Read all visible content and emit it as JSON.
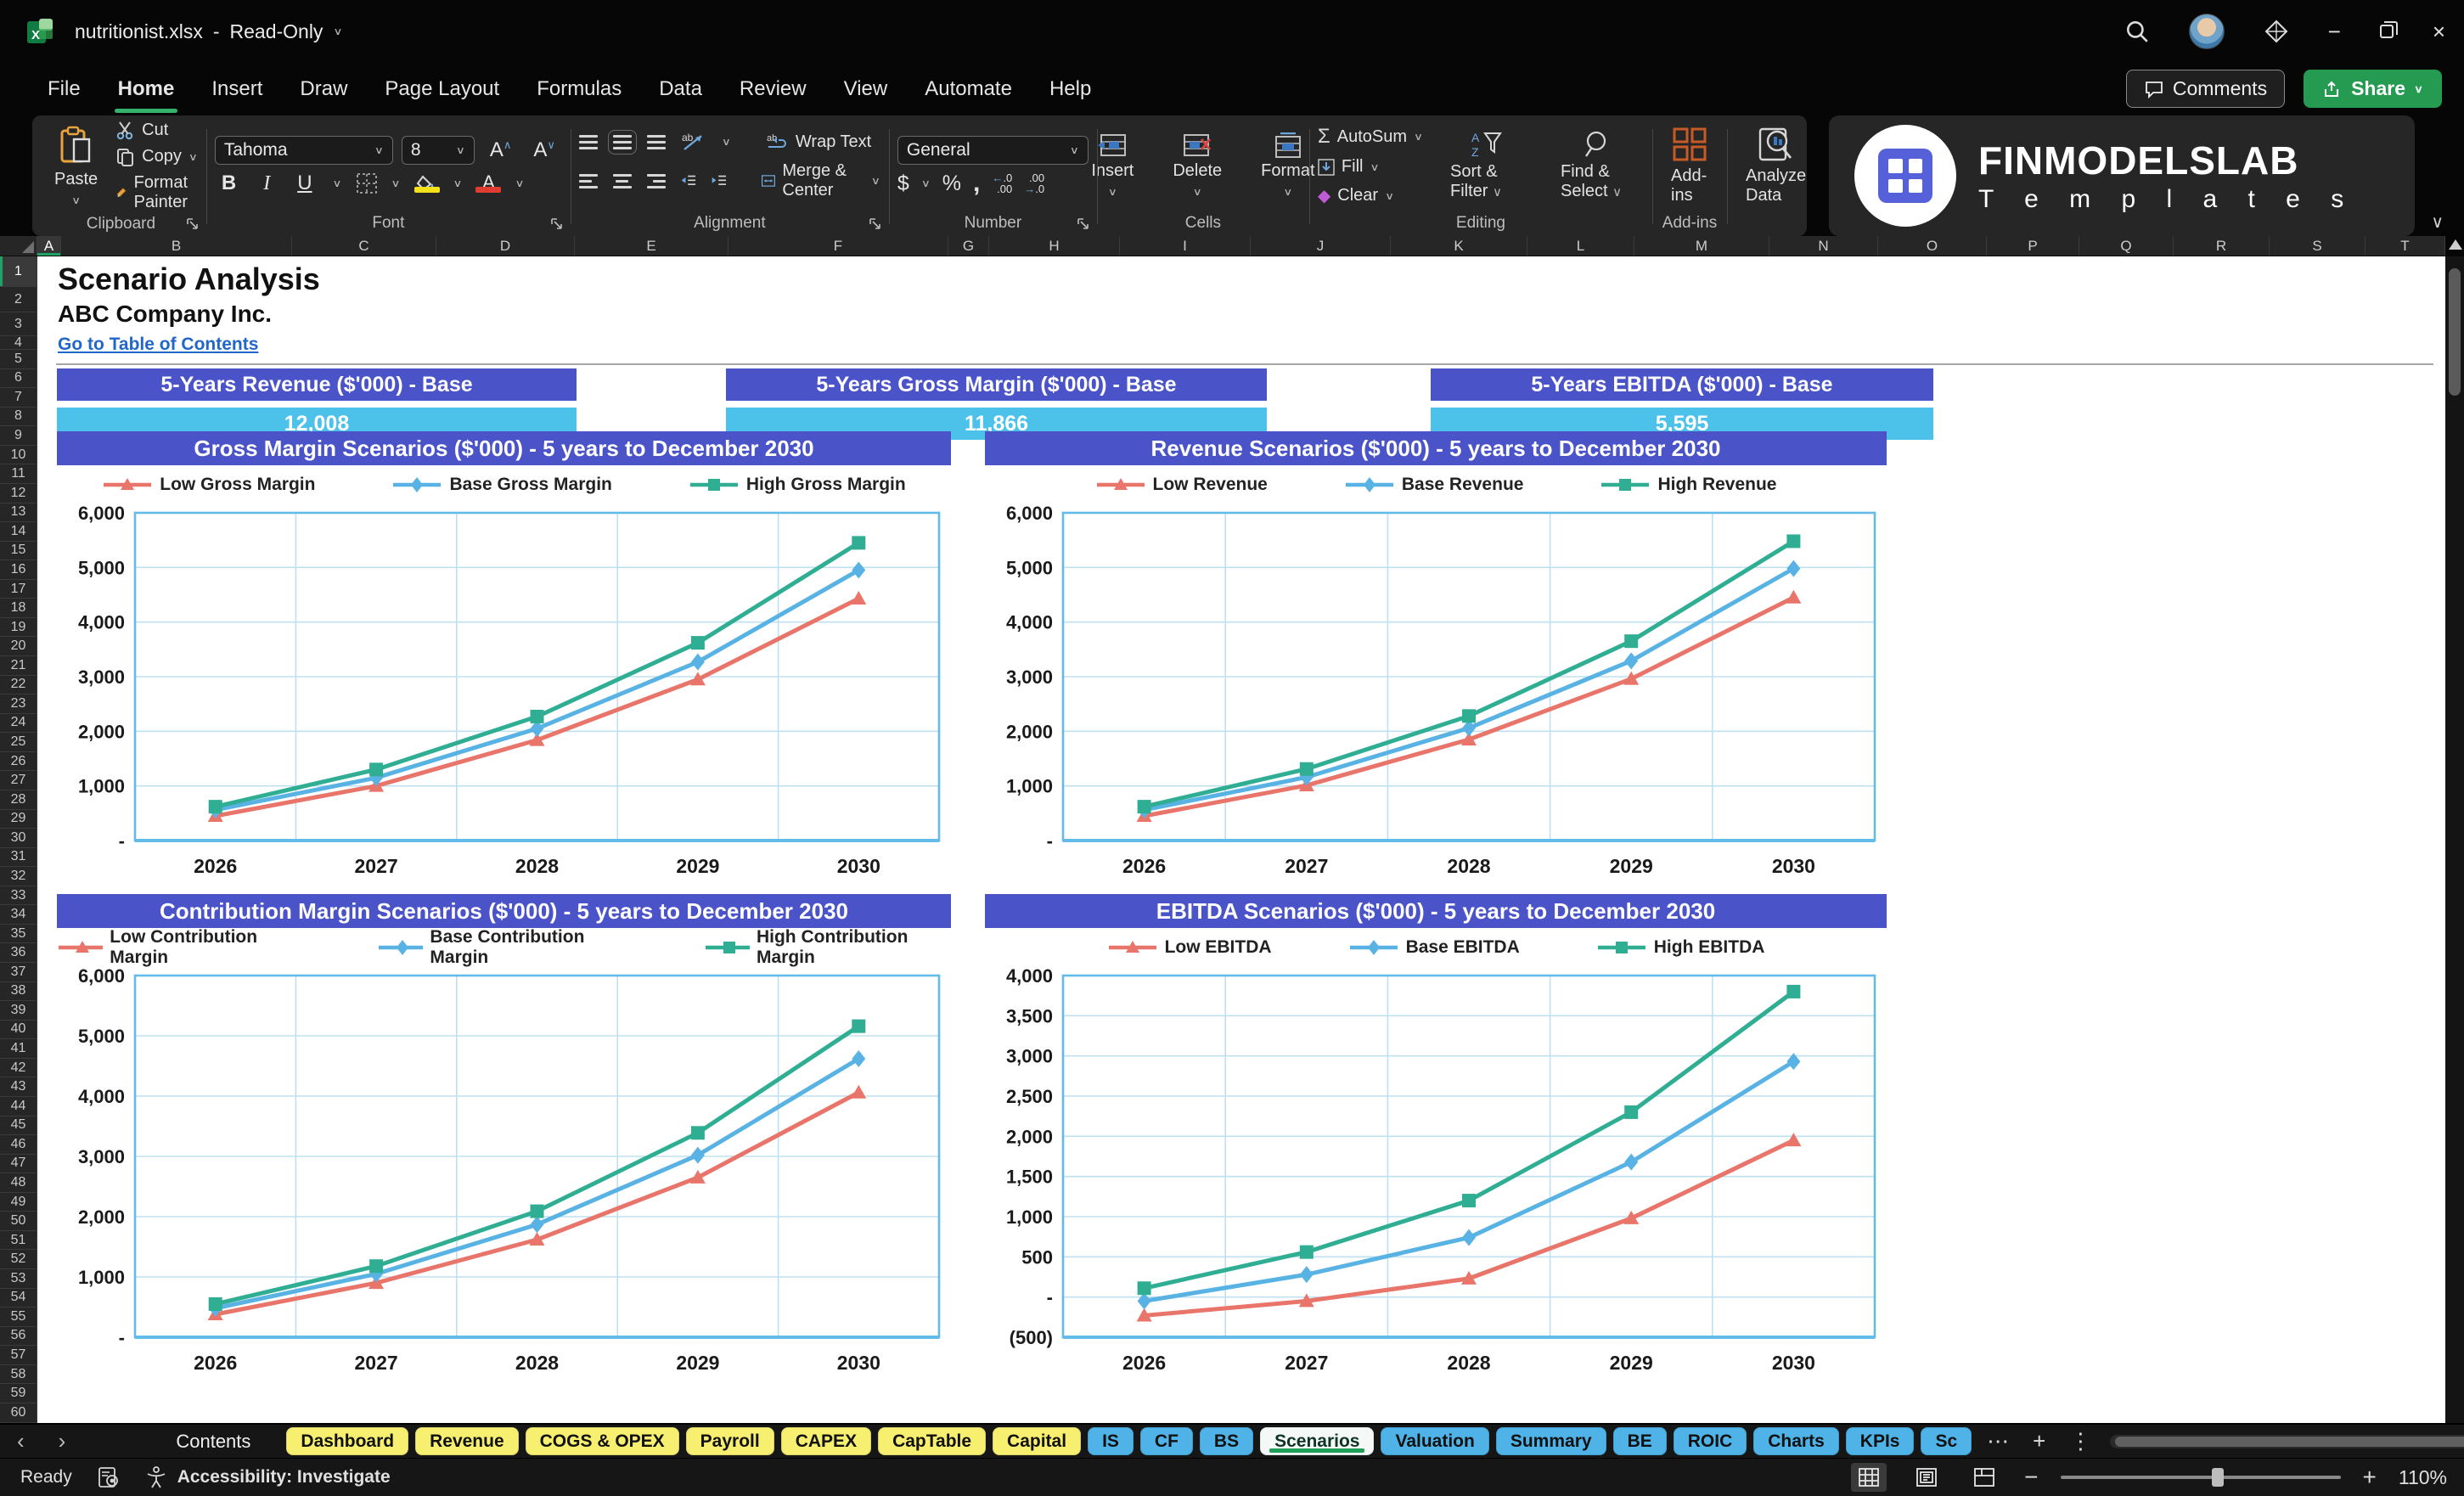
{
  "window": {
    "title": "nutritionist.xlsx",
    "mode": "Read-Only"
  },
  "menu": {
    "tabs": [
      "File",
      "Home",
      "Insert",
      "Draw",
      "Page Layout",
      "Formulas",
      "Data",
      "Review",
      "View",
      "Automate",
      "Help"
    ],
    "active": "Home",
    "comments_label": "Comments",
    "share_label": "Share"
  },
  "ribbon": {
    "clipboard": {
      "paste": "Paste",
      "cut": "Cut",
      "copy": "Copy",
      "format_painter": "Format Painter",
      "group": "Clipboard"
    },
    "font": {
      "family": "Tahoma",
      "size": "8",
      "bold": "B",
      "italic": "I",
      "underline": "U",
      "group": "Font"
    },
    "alignment": {
      "wrap": "Wrap Text",
      "merge": "Merge & Center",
      "group": "Alignment"
    },
    "number": {
      "format": "General",
      "group": "Number"
    },
    "cells": {
      "insert": "Insert",
      "delete": "Delete",
      "format": "Format",
      "group": "Cells"
    },
    "editing": {
      "autosum": "AutoSum",
      "fill": "Fill",
      "clear": "Clear",
      "sort": "Sort & Filter",
      "find": "Find & Select",
      "group": "Editing"
    },
    "addins": {
      "addins": "Add-ins",
      "analyze_1": "Analyze",
      "analyze_2": "Data",
      "group": "Add-ins"
    }
  },
  "brand": {
    "line1": "FINMODELSLAB",
    "line2": "T e m p l a t e s"
  },
  "sheet": {
    "columns": [
      "A",
      "B",
      "C",
      "D",
      "E",
      "F",
      "G",
      "H",
      "I",
      "J",
      "K",
      "L",
      "M",
      "N",
      "O",
      "P",
      "Q",
      "R",
      "S",
      "T"
    ],
    "rows": [
      "1",
      "2",
      "3",
      "4",
      "5",
      "6",
      "7",
      "8",
      "9",
      "10",
      "11",
      "12",
      "13",
      "14",
      "15",
      "16",
      "17",
      "18",
      "19",
      "20",
      "21",
      "22",
      "23",
      "24",
      "25",
      "26",
      "27",
      "28",
      "29",
      "30",
      "31",
      "32",
      "33",
      "34",
      "35",
      "36",
      "37",
      "38",
      "39",
      "40",
      "41",
      "42",
      "43",
      "44",
      "45",
      "46",
      "47",
      "48",
      "49",
      "50",
      "51",
      "52",
      "53",
      "54",
      "55",
      "56",
      "57",
      "58",
      "59",
      "60"
    ],
    "title": "Scenario Analysis",
    "subtitle": "ABC Company Inc.",
    "link": "Go to Table of Contents",
    "kpis": [
      {
        "label": "5-Years Revenue ($'000) - Base",
        "value": "12,008"
      },
      {
        "label": "5-Years Gross Margin ($'000) - Base",
        "value": "11,866"
      },
      {
        "label": "5-Years EBITDA ($'000) - Base",
        "value": "5,595"
      }
    ]
  },
  "colors": {
    "accent_purple": "#4B53C9",
    "kpi_blue": "#4CC1EA",
    "low": "#E8746A",
    "base": "#58B3E4",
    "high": "#2FAE93",
    "grid_line": "#BFE0F0",
    "plot_border": "#63BBE9",
    "tab_yellow": "#F6EF70",
    "tab_blue": "#4FB3E8",
    "active_green": "#1E9E57"
  },
  "chart_data": [
    {
      "type": "line",
      "title": "Gross Margin Scenarios ($'000) - 5 years to December 2030",
      "categories": [
        "2026",
        "2027",
        "2028",
        "2029",
        "2030"
      ],
      "ylim": [
        0,
        6000
      ],
      "ytick_step": 1000,
      "grid": true,
      "legend_position": "top",
      "series": [
        {
          "name": "Low Gross Margin",
          "role": "low",
          "marker": "triangle",
          "values": [
            450,
            1000,
            1840,
            2950,
            4430
          ]
        },
        {
          "name": "Base Gross Margin",
          "role": "base",
          "marker": "diamond",
          "values": [
            560,
            1150,
            2050,
            3270,
            4950
          ]
        },
        {
          "name": "High Gross Margin",
          "role": "high",
          "marker": "square",
          "values": [
            620,
            1300,
            2270,
            3620,
            5450
          ]
        }
      ]
    },
    {
      "type": "line",
      "title": "Revenue Scenarios ($'000) - 5 years to December 2030",
      "categories": [
        "2026",
        "2027",
        "2028",
        "2029",
        "2030"
      ],
      "ylim": [
        0,
        6000
      ],
      "ytick_step": 1000,
      "grid": true,
      "legend_position": "top",
      "series": [
        {
          "name": "Low Revenue",
          "role": "low",
          "marker": "triangle",
          "values": [
            450,
            1010,
            1850,
            2960,
            4450
          ]
        },
        {
          "name": "Base Revenue",
          "role": "base",
          "marker": "diamond",
          "values": [
            560,
            1160,
            2060,
            3290,
            4980
          ]
        },
        {
          "name": "High Revenue",
          "role": "high",
          "marker": "square",
          "values": [
            620,
            1310,
            2280,
            3650,
            5480
          ]
        }
      ]
    },
    {
      "type": "line",
      "title": "Contribution Margin Scenarios ($'000) - 5 years to December 2030",
      "categories": [
        "2026",
        "2027",
        "2028",
        "2029",
        "2030"
      ],
      "ylim": [
        0,
        6000
      ],
      "ytick_step": 1000,
      "grid": true,
      "legend_position": "top",
      "series": [
        {
          "name": "Low Contribution Margin",
          "role": "low",
          "marker": "triangle",
          "values": [
            380,
            900,
            1620,
            2650,
            4060
          ]
        },
        {
          "name": "Base Contribution Margin",
          "role": "base",
          "marker": "diamond",
          "values": [
            480,
            1050,
            1870,
            3020,
            4620
          ]
        },
        {
          "name": "High Contribution Margin",
          "role": "high",
          "marker": "square",
          "values": [
            550,
            1180,
            2090,
            3390,
            5160
          ]
        }
      ]
    },
    {
      "type": "line",
      "title": "EBITDA Scenarios ($'000) - 5 years to December 2030",
      "categories": [
        "2026",
        "2027",
        "2028",
        "2029",
        "2030"
      ],
      "ylim": [
        -500,
        4000
      ],
      "ytick_step": 500,
      "grid": true,
      "legend_position": "top",
      "series": [
        {
          "name": "Low EBITDA",
          "role": "low",
          "marker": "triangle",
          "values": [
            -230,
            -50,
            230,
            980,
            1950
          ]
        },
        {
          "name": "Base EBITDA",
          "role": "base",
          "marker": "diamond",
          "values": [
            -50,
            280,
            740,
            1680,
            2930
          ]
        },
        {
          "name": "High EBITDA",
          "role": "high",
          "marker": "square",
          "values": [
            110,
            560,
            1200,
            2300,
            3800
          ]
        }
      ]
    }
  ],
  "sheet_tabs": {
    "contents": "Contents",
    "tabs": [
      {
        "label": "Dashboard",
        "color": "yellow"
      },
      {
        "label": "Revenue",
        "color": "yellow"
      },
      {
        "label": "COGS & OPEX",
        "color": "yellow"
      },
      {
        "label": "Payroll",
        "color": "yellow"
      },
      {
        "label": "CAPEX",
        "color": "yellow"
      },
      {
        "label": "CapTable",
        "color": "yellow"
      },
      {
        "label": "Capital",
        "color": "yellow"
      },
      {
        "label": "IS",
        "color": "blue"
      },
      {
        "label": "CF",
        "color": "blue"
      },
      {
        "label": "BS",
        "color": "blue"
      },
      {
        "label": "Scenarios",
        "color": "active"
      },
      {
        "label": "Valuation",
        "color": "blue"
      },
      {
        "label": "Summary",
        "color": "blue"
      },
      {
        "label": "BE",
        "color": "blue"
      },
      {
        "label": "ROIC",
        "color": "blue"
      },
      {
        "label": "Charts",
        "color": "blue"
      },
      {
        "label": "KPIs",
        "color": "blue"
      },
      {
        "label": "Sc",
        "color": "blue"
      }
    ]
  },
  "statusbar": {
    "ready": "Ready",
    "accessibility": "Accessibility: Investigate",
    "zoom": "110%"
  }
}
